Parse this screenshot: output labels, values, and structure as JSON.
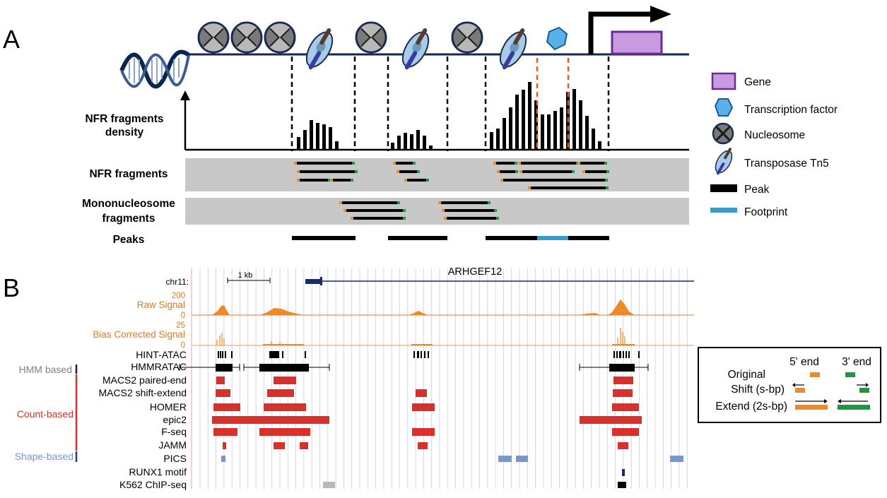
{
  "panel_a": {
    "label": "A",
    "tracks": {
      "density": [
        "NFR fragments",
        "density"
      ],
      "nfr": "NFR fragments",
      "mono": [
        "Mononucleosome",
        "fragments"
      ],
      "peaks": "Peaks"
    },
    "legend": [
      {
        "icon": "gene-icon",
        "label": "Gene",
        "color": "#c89ae0"
      },
      {
        "icon": "transcription-factor-icon",
        "label": "Transcription factor",
        "color": "#4a9ad8"
      },
      {
        "icon": "nucleosome-icon",
        "label": "Nucleosome",
        "color": "#808080"
      },
      {
        "icon": "transposase-icon",
        "label": "Transposase Tn5",
        "color": "#a8cce8"
      },
      {
        "icon": "peak-swatch-icon",
        "label": "Peak",
        "color": "#000000"
      },
      {
        "icon": "footprint-swatch-icon",
        "label": "Footprint",
        "color": "#3a9ac8"
      }
    ],
    "density_bars": [
      {
        "region": 1,
        "heights": [
          0.18,
          0.28,
          0.42,
          0.38,
          0.36,
          0.32,
          0.12
        ]
      },
      {
        "region": 2,
        "heights": [
          0.1,
          0.2,
          0.24,
          0.22,
          0.28,
          0.2,
          0.06
        ]
      },
      {
        "region": 3,
        "heights": [
          0.25,
          0.3,
          0.45,
          0.6,
          0.78,
          0.85,
          0.96,
          0.7,
          0.5,
          0.5,
          0.55,
          0.6,
          0.82,
          0.86,
          0.7,
          0.48,
          0.3,
          0.12
        ]
      }
    ]
  },
  "panel_b": {
    "label": "B",
    "chrom": "chr11:",
    "scale_label": "1 kb",
    "gene_name": "ARHGEF12",
    "raw_signal": {
      "label": "Raw Signal",
      "max": "200",
      "min": "0"
    },
    "bias_signal": {
      "label": "Bias Corrected Signal",
      "max": "25",
      "min": "0"
    },
    "tracks": [
      "HINT-ATAC",
      "HMMRATAC",
      "MACS2 paired-end",
      "MACS2 shift-extend",
      "HOMER",
      "epic2",
      "F-seq",
      "JAMM",
      "PICS",
      "RUNX1 motif",
      "K562 ChIP-seq"
    ],
    "groups": [
      {
        "label": "HMM based",
        "color": "#808080"
      },
      {
        "label": "Count-based",
        "color": "#d8302a"
      },
      {
        "label": "Shape-based",
        "color": "#7a96d0"
      }
    ],
    "shift_legend": {
      "header_5": "5' end",
      "header_3": "3' end",
      "rows": [
        "Original",
        "Shift (s-bp)",
        "Extend (2s-bp)"
      ]
    }
  }
}
